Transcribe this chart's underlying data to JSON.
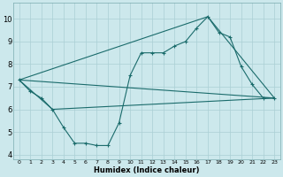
{
  "xlabel": "Humidex (Indice chaleur)",
  "bg_color": "#cce8ec",
  "grid_color": "#aacfd4",
  "line_color": "#1a6b6b",
  "ylim": [
    3.8,
    10.7
  ],
  "yticks": [
    4,
    5,
    6,
    7,
    8,
    9,
    10
  ],
  "xticks": [
    0,
    1,
    2,
    3,
    4,
    5,
    6,
    7,
    8,
    9,
    10,
    11,
    12,
    13,
    14,
    15,
    16,
    17,
    18,
    19,
    20,
    21,
    22,
    23
  ],
  "series1_x": [
    0,
    1,
    2,
    3,
    4,
    5,
    6,
    7,
    8,
    9,
    10,
    11,
    12,
    13,
    14,
    15,
    16,
    17,
    18,
    19,
    20,
    21,
    22,
    23
  ],
  "series1_y": [
    7.3,
    6.8,
    6.5,
    6.0,
    5.2,
    4.5,
    4.5,
    4.4,
    4.4,
    5.4,
    7.5,
    8.5,
    8.5,
    8.5,
    8.8,
    9.0,
    9.6,
    10.1,
    9.4,
    9.2,
    7.9,
    7.1,
    6.5,
    6.5
  ],
  "series2_x": [
    0,
    23
  ],
  "series2_y": [
    7.3,
    6.5
  ],
  "series3_x": [
    0,
    17,
    23
  ],
  "series3_y": [
    7.3,
    10.1,
    6.5
  ],
  "series4_x": [
    0,
    3,
    23
  ],
  "series4_y": [
    7.3,
    6.0,
    6.5
  ]
}
